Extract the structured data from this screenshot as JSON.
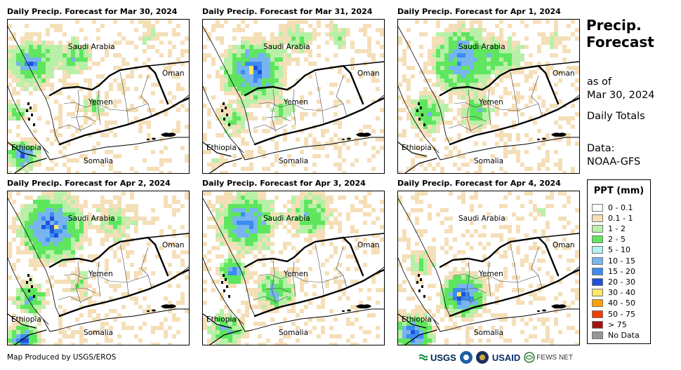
{
  "panels": [
    {
      "title": "Daily Precip. Forecast for Mar 30, 2024",
      "variant": 0
    },
    {
      "title": "Daily Precip. Forecast for Mar 31, 2024",
      "variant": 1
    },
    {
      "title": "Daily Precip. Forecast for Apr 1, 2024",
      "variant": 2
    },
    {
      "title": "Daily Precip. Forecast for Apr 2, 2024",
      "variant": 3
    },
    {
      "title": "Daily Precip. Forecast for Apr 3, 2024",
      "variant": 4
    },
    {
      "title": "Daily Precip. Forecast for Apr 4, 2024",
      "variant": 5
    }
  ],
  "map_labels": {
    "saudi": "Saudi Arabia",
    "oman": "Oman",
    "yemen": "Yemen",
    "ethiopia": "Ethiopia",
    "somalia": "Somalia"
  },
  "sidebar": {
    "title_line1": "Precip.",
    "title_line2": "Forecast",
    "asof_line1": "as of",
    "asof_line2": "Mar 30, 2024",
    "daily": "Daily Totals",
    "data_line1": "Data:",
    "data_line2": "NOAA-GFS"
  },
  "legend": {
    "title": "PPT (mm)",
    "items": [
      {
        "label": "0 - 0.1",
        "color": "#ffffff"
      },
      {
        "label": "0.1 - 1",
        "color": "#f5dfb8"
      },
      {
        "label": "1 - 2",
        "color": "#b8f0a8"
      },
      {
        "label": "2 - 5",
        "color": "#5ee65e"
      },
      {
        "label": "5 - 10",
        "color": "#b4f0f0"
      },
      {
        "label": "10 - 15",
        "color": "#78b4f0"
      },
      {
        "label": "15 - 20",
        "color": "#3c8cf0"
      },
      {
        "label": "20 - 30",
        "color": "#1e50dc"
      },
      {
        "label": "30 - 40",
        "color": "#ffe664"
      },
      {
        "label": "40 - 50",
        "color": "#ffa000"
      },
      {
        "label": "50 - 75",
        "color": "#f03c00"
      },
      {
        "label": "> 75",
        "color": "#a01414"
      },
      {
        "label": "No Data",
        "color": "#969696"
      }
    ]
  },
  "credit": "Map Produced by USGS/EROS",
  "logos": {
    "usgs": "USGS",
    "usaid": "USAID",
    "fews": "FEWS NET"
  }
}
